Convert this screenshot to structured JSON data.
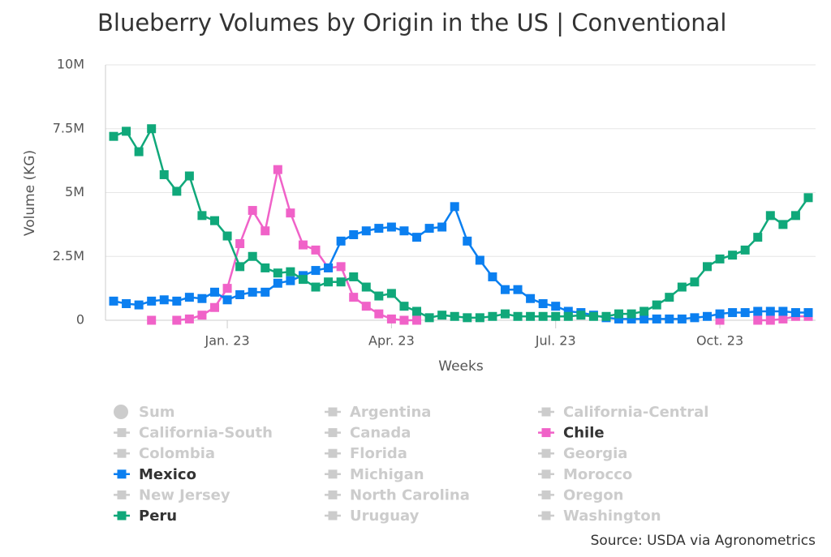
{
  "chart_data": {
    "type": "line",
    "title": "Blueberry Volumes by Origin in the US | Conventional",
    "x_label": "Weeks",
    "y_label": "Volume (KG)",
    "source": "Source: USDA via Agronometrics",
    "categories": [
      null,
      null,
      null,
      null,
      null,
      null,
      null,
      null,
      null,
      "Jan. 23",
      null,
      null,
      null,
      null,
      null,
      null,
      null,
      null,
      null,
      null,
      null,
      null,
      "Apr. 23",
      null,
      null,
      null,
      null,
      null,
      null,
      null,
      null,
      null,
      null,
      null,
      null,
      "Jul. 23",
      null,
      null,
      null,
      null,
      null,
      null,
      null,
      null,
      null,
      null,
      null,
      null,
      "Oct. 23",
      null,
      null,
      null,
      null,
      null,
      null,
      null
    ],
    "ylim": [
      0,
      10000000
    ],
    "yticks": [
      0,
      {
        "value": 2500000,
        "label": "2.5M"
      },
      {
        "value": 5000000,
        "label": "5M"
      },
      {
        "value": 7500000,
        "label": "7.5M"
      },
      {
        "value": 10000000,
        "label": "10M"
      }
    ],
    "grid": true,
    "hidden_color": "#cccccc",
    "series": [
      {
        "name": "Sum",
        "visible": false,
        "marker": "circle"
      },
      {
        "name": "Argentina",
        "visible": false
      },
      {
        "name": "California-Central",
        "visible": false
      },
      {
        "name": "California-South",
        "visible": false
      },
      {
        "name": "Canada",
        "visible": false
      },
      {
        "name": "Chile",
        "visible": true,
        "color": "#f062c8",
        "values": [
          null,
          null,
          null,
          0,
          null,
          0,
          50000,
          200000,
          500000,
          1250000,
          3000000,
          4300000,
          3500000,
          5900000,
          4200000,
          2950000,
          2750000,
          2050000,
          2100000,
          900000,
          550000,
          250000,
          50000,
          0,
          0,
          null,
          null,
          null,
          null,
          null,
          null,
          null,
          null,
          null,
          null,
          null,
          null,
          null,
          null,
          null,
          null,
          null,
          null,
          null,
          null,
          null,
          null,
          null,
          0,
          null,
          null,
          0,
          0,
          50000,
          150000,
          150000
        ]
      },
      {
        "name": "Colombia",
        "visible": false
      },
      {
        "name": "Florida",
        "visible": false
      },
      {
        "name": "Georgia",
        "visible": false
      },
      {
        "name": "Mexico",
        "visible": true,
        "color": "#0b7ff0",
        "values": [
          750000,
          650000,
          600000,
          750000,
          800000,
          750000,
          900000,
          850000,
          1100000,
          800000,
          1000000,
          1100000,
          1100000,
          1450000,
          1550000,
          1750000,
          1950000,
          2050000,
          3100000,
          3350000,
          3500000,
          3600000,
          3650000,
          3500000,
          3250000,
          3600000,
          3650000,
          4450000,
          3100000,
          2350000,
          1700000,
          1200000,
          1200000,
          850000,
          650000,
          550000,
          350000,
          300000,
          200000,
          100000,
          50000,
          50000,
          50000,
          50000,
          50000,
          50000,
          100000,
          150000,
          250000,
          300000,
          300000,
          350000,
          350000,
          350000,
          300000,
          300000
        ]
      },
      {
        "name": "Michigan",
        "visible": false
      },
      {
        "name": "Morocco",
        "visible": false
      },
      {
        "name": "New Jersey",
        "visible": false
      },
      {
        "name": "North Carolina",
        "visible": false
      },
      {
        "name": "Oregon",
        "visible": false
      },
      {
        "name": "Peru",
        "visible": true,
        "color": "#10a87a",
        "values": [
          7200000,
          7400000,
          6600000,
          7500000,
          5700000,
          5050000,
          5650000,
          4100000,
          3900000,
          3300000,
          2100000,
          2500000,
          2050000,
          1850000,
          1900000,
          1600000,
          1300000,
          1500000,
          1500000,
          1700000,
          1300000,
          950000,
          1050000,
          550000,
          350000,
          100000,
          200000,
          150000,
          100000,
          100000,
          150000,
          250000,
          150000,
          150000,
          150000,
          150000,
          150000,
          200000,
          150000,
          150000,
          250000,
          250000,
          350000,
          600000,
          900000,
          1300000,
          1500000,
          2100000,
          2400000,
          2550000,
          2750000,
          3250000,
          4100000,
          3750000,
          4100000,
          4800000
        ]
      },
      {
        "name": "Uruguay",
        "visible": false
      },
      {
        "name": "Washington",
        "visible": false
      }
    ]
  }
}
